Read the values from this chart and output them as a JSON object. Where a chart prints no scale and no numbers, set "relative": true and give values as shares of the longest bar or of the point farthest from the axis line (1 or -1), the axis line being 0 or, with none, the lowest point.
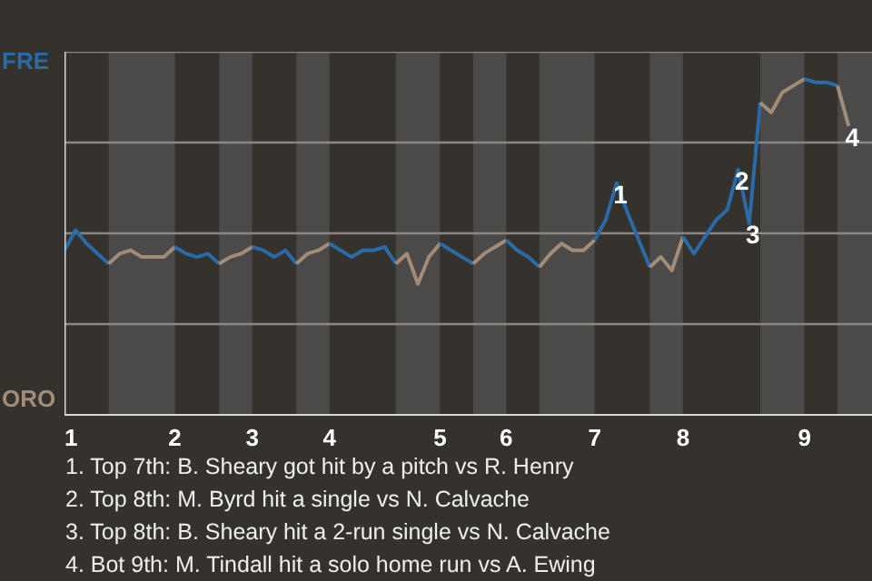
{
  "chart_data": {
    "type": "line",
    "relative": true,
    "categories": [
      "1",
      null,
      null,
      null,
      null,
      null,
      null,
      null,
      null,
      null,
      "2",
      null,
      null,
      null,
      null,
      null,
      null,
      "3",
      null,
      null,
      null,
      null,
      null,
      null,
      "4",
      null,
      null,
      null,
      null,
      null,
      null,
      null,
      null,
      null,
      "5",
      null,
      null,
      null,
      null,
      null,
      "6",
      null,
      null,
      null,
      null,
      null,
      null,
      null,
      "7",
      null,
      null,
      null,
      null,
      null,
      null,
      null,
      "8",
      null,
      null,
      null,
      null,
      null,
      null,
      null,
      null,
      null,
      null,
      "9",
      null,
      null,
      null,
      null
    ],
    "grid": "y",
    "marker": "none",
    "line_style": "solid",
    "series": [
      {
        "name": "FRE",
        "color": "#2a6aa6",
        "values": [
          0.49,
          0.55,
          0.51,
          0.48,
          0.45,
          null,
          null,
          null,
          null,
          null,
          null,
          null,
          null,
          null,
          null,
          null,
          null,
          null,
          null,
          null,
          null,
          null,
          null,
          null,
          null,
          null,
          null,
          null,
          null,
          null,
          null,
          null,
          null,
          null,
          null,
          null,
          null,
          null,
          null,
          null,
          null,
          null,
          null,
          null,
          null,
          null,
          null,
          null,
          null,
          null,
          null,
          null,
          null,
          null,
          null,
          null,
          null,
          null,
          null,
          null,
          null,
          null,
          null,
          null,
          null,
          null,
          null,
          null,
          null,
          null,
          null,
          null
        ]
      },
      {
        "name": "ORO",
        "color": "#a08c78",
        "values": [
          null,
          null,
          null,
          null,
          0.45,
          0.48,
          0.49,
          0.47,
          0.47,
          0.47,
          0.5,
          null,
          null,
          null,
          null,
          null,
          null,
          null,
          null,
          null,
          null,
          null,
          null,
          null,
          null,
          null,
          null,
          null,
          null,
          null,
          null,
          null,
          null,
          null,
          null,
          null,
          null,
          null,
          null,
          null,
          null,
          null,
          null,
          null,
          null,
          null,
          null,
          null,
          null,
          null,
          null,
          null,
          null,
          null,
          null,
          null,
          null,
          null,
          null,
          null,
          null,
          null,
          null,
          null,
          null,
          null,
          null,
          null,
          null,
          null,
          null,
          null
        ]
      },
      {
        "color": "#2a6aa6",
        "values": [
          null,
          null,
          null,
          null,
          null,
          null,
          null,
          null,
          null,
          null,
          0.5,
          0.48,
          0.47,
          0.48,
          0.45,
          null,
          null,
          null,
          null,
          null,
          null,
          null,
          null,
          null,
          null,
          null,
          null,
          null,
          null,
          null,
          null,
          null,
          null,
          null,
          null,
          null,
          null,
          null,
          null,
          null,
          null,
          null,
          null,
          null,
          null,
          null,
          null,
          null,
          null,
          null,
          null,
          null,
          null,
          null,
          null,
          null,
          null,
          null,
          null,
          null,
          null,
          null,
          null,
          null,
          null,
          null,
          null,
          null,
          null,
          null,
          null,
          null
        ]
      },
      {
        "color": "#a08c78",
        "values": [
          null,
          null,
          null,
          null,
          null,
          null,
          null,
          null,
          null,
          null,
          null,
          null,
          null,
          null,
          0.45,
          0.47,
          0.48,
          0.5,
          null,
          null,
          null,
          null,
          null,
          null,
          null,
          null,
          null,
          null,
          null,
          null,
          null,
          null,
          null,
          null,
          null,
          null,
          null,
          null,
          null,
          null,
          null,
          null,
          null,
          null,
          null,
          null,
          null,
          null,
          null,
          null,
          null,
          null,
          null,
          null,
          null,
          null,
          null,
          null,
          null,
          null,
          null,
          null,
          null,
          null,
          null,
          null,
          null,
          null,
          null,
          null,
          null,
          null
        ]
      },
      {
        "color": "#2a6aa6",
        "values": [
          null,
          null,
          null,
          null,
          null,
          null,
          null,
          null,
          null,
          null,
          null,
          null,
          null,
          null,
          null,
          null,
          null,
          0.5,
          0.49,
          0.47,
          0.49,
          0.45,
          null,
          null,
          null,
          null,
          null,
          null,
          null,
          null,
          null,
          null,
          null,
          null,
          null,
          null,
          null,
          null,
          null,
          null,
          null,
          null,
          null,
          null,
          null,
          null,
          null,
          null,
          null,
          null,
          null,
          null,
          null,
          null,
          null,
          null,
          null,
          null,
          null,
          null,
          null,
          null,
          null,
          null,
          null,
          null,
          null,
          null,
          null,
          null,
          null,
          null
        ]
      },
      {
        "color": "#a08c78",
        "values": [
          null,
          null,
          null,
          null,
          null,
          null,
          null,
          null,
          null,
          null,
          null,
          null,
          null,
          null,
          null,
          null,
          null,
          null,
          null,
          null,
          null,
          0.45,
          0.48,
          0.49,
          0.51,
          null,
          null,
          null,
          null,
          null,
          null,
          null,
          null,
          null,
          null,
          null,
          null,
          null,
          null,
          null,
          null,
          null,
          null,
          null,
          null,
          null,
          null,
          null,
          null,
          null,
          null,
          null,
          null,
          null,
          null,
          null,
          null,
          null,
          null,
          null,
          null,
          null,
          null,
          null,
          null,
          null,
          null,
          null,
          null,
          null,
          null,
          null
        ]
      },
      {
        "color": "#2a6aa6",
        "values": [
          null,
          null,
          null,
          null,
          null,
          null,
          null,
          null,
          null,
          null,
          null,
          null,
          null,
          null,
          null,
          null,
          null,
          null,
          null,
          null,
          null,
          null,
          null,
          null,
          0.51,
          0.49,
          0.47,
          0.49,
          0.49,
          0.5,
          0.45,
          null,
          null,
          null,
          null,
          null,
          null,
          null,
          null,
          null,
          null,
          null,
          null,
          null,
          null,
          null,
          null,
          null,
          null,
          null,
          null,
          null,
          null,
          null,
          null,
          null,
          null,
          null,
          null,
          null,
          null,
          null,
          null,
          null,
          null,
          null,
          null,
          null,
          null,
          null,
          null,
          null
        ]
      },
      {
        "color": "#a08c78",
        "values": [
          null,
          null,
          null,
          null,
          null,
          null,
          null,
          null,
          null,
          null,
          null,
          null,
          null,
          null,
          null,
          null,
          null,
          null,
          null,
          null,
          null,
          null,
          null,
          null,
          null,
          null,
          null,
          null,
          null,
          null,
          0.45,
          0.48,
          0.39,
          0.47,
          0.51,
          null,
          null,
          null,
          null,
          null,
          null,
          null,
          null,
          null,
          null,
          null,
          null,
          null,
          null,
          null,
          null,
          null,
          null,
          null,
          null,
          null,
          null,
          null,
          null,
          null,
          null,
          null,
          null,
          null,
          null,
          null,
          null,
          null,
          null,
          null,
          null,
          null
        ]
      },
      {
        "color": "#2a6aa6",
        "values": [
          null,
          null,
          null,
          null,
          null,
          null,
          null,
          null,
          null,
          null,
          null,
          null,
          null,
          null,
          null,
          null,
          null,
          null,
          null,
          null,
          null,
          null,
          null,
          null,
          null,
          null,
          null,
          null,
          null,
          null,
          null,
          null,
          null,
          null,
          0.51,
          0.49,
          0.47,
          0.45,
          null,
          null,
          null,
          null,
          null,
          null,
          null,
          null,
          null,
          null,
          null,
          null,
          null,
          null,
          null,
          null,
          null,
          null,
          null,
          null,
          null,
          null,
          null,
          null,
          null,
          null,
          null,
          null,
          null,
          null,
          null,
          null,
          null,
          null
        ]
      },
      {
        "color": "#a08c78",
        "values": [
          null,
          null,
          null,
          null,
          null,
          null,
          null,
          null,
          null,
          null,
          null,
          null,
          null,
          null,
          null,
          null,
          null,
          null,
          null,
          null,
          null,
          null,
          null,
          null,
          null,
          null,
          null,
          null,
          null,
          null,
          null,
          null,
          null,
          null,
          null,
          null,
          null,
          0.45,
          0.48,
          0.5,
          0.52,
          null,
          null,
          null,
          null,
          null,
          null,
          null,
          null,
          null,
          null,
          null,
          null,
          null,
          null,
          null,
          null,
          null,
          null,
          null,
          null,
          null,
          null,
          null,
          null,
          null,
          null,
          null,
          null,
          null,
          null,
          null
        ]
      },
      {
        "color": "#2a6aa6",
        "values": [
          null,
          null,
          null,
          null,
          null,
          null,
          null,
          null,
          null,
          null,
          null,
          null,
          null,
          null,
          null,
          null,
          null,
          null,
          null,
          null,
          null,
          null,
          null,
          null,
          null,
          null,
          null,
          null,
          null,
          null,
          null,
          null,
          null,
          null,
          null,
          null,
          null,
          null,
          null,
          null,
          0.52,
          0.49,
          0.47,
          0.44,
          null,
          null,
          null,
          null,
          null,
          null,
          null,
          null,
          null,
          null,
          null,
          null,
          null,
          null,
          null,
          null,
          null,
          null,
          null,
          null,
          null,
          null,
          null,
          null,
          null,
          null,
          null,
          null
        ]
      },
      {
        "color": "#a08c78",
        "values": [
          null,
          null,
          null,
          null,
          null,
          null,
          null,
          null,
          null,
          null,
          null,
          null,
          null,
          null,
          null,
          null,
          null,
          null,
          null,
          null,
          null,
          null,
          null,
          null,
          null,
          null,
          null,
          null,
          null,
          null,
          null,
          null,
          null,
          null,
          null,
          null,
          null,
          null,
          null,
          null,
          null,
          null,
          null,
          0.44,
          0.48,
          0.51,
          0.49,
          0.49,
          0.52,
          null,
          null,
          null,
          null,
          null,
          null,
          null,
          null,
          null,
          null,
          null,
          null,
          null,
          null,
          null,
          null,
          null,
          null,
          null,
          null,
          null,
          null,
          null
        ]
      },
      {
        "color": "#2a6aa6",
        "values": [
          null,
          null,
          null,
          null,
          null,
          null,
          null,
          null,
          null,
          null,
          null,
          null,
          null,
          null,
          null,
          null,
          null,
          null,
          null,
          null,
          null,
          null,
          null,
          null,
          null,
          null,
          null,
          null,
          null,
          null,
          null,
          null,
          null,
          null,
          null,
          null,
          null,
          null,
          null,
          null,
          null,
          null,
          null,
          null,
          null,
          null,
          null,
          null,
          0.52,
          0.58,
          0.69,
          0.6,
          0.52,
          0.44,
          null,
          null,
          null,
          null,
          null,
          null,
          null,
          null,
          null,
          null,
          null,
          null,
          null,
          null,
          null,
          null,
          null,
          null
        ]
      },
      {
        "color": "#a08c78",
        "values": [
          null,
          null,
          null,
          null,
          null,
          null,
          null,
          null,
          null,
          null,
          null,
          null,
          null,
          null,
          null,
          null,
          null,
          null,
          null,
          null,
          null,
          null,
          null,
          null,
          null,
          null,
          null,
          null,
          null,
          null,
          null,
          null,
          null,
          null,
          null,
          null,
          null,
          null,
          null,
          null,
          null,
          null,
          null,
          null,
          null,
          null,
          null,
          null,
          null,
          null,
          null,
          null,
          null,
          0.44,
          0.47,
          0.43,
          0.53,
          null,
          null,
          null,
          null,
          null,
          null,
          null,
          null,
          null,
          null,
          null,
          null,
          null,
          null,
          null
        ]
      },
      {
        "color": "#2a6aa6",
        "values": [
          null,
          null,
          null,
          null,
          null,
          null,
          null,
          null,
          null,
          null,
          null,
          null,
          null,
          null,
          null,
          null,
          null,
          null,
          null,
          null,
          null,
          null,
          null,
          null,
          null,
          null,
          null,
          null,
          null,
          null,
          null,
          null,
          null,
          null,
          null,
          null,
          null,
          null,
          null,
          null,
          null,
          null,
          null,
          null,
          null,
          null,
          null,
          null,
          null,
          null,
          null,
          null,
          null,
          null,
          null,
          null,
          0.53,
          0.48,
          0.53,
          0.58,
          0.61,
          0.73,
          0.57,
          0.93,
          null,
          null,
          null,
          null,
          null,
          null,
          null,
          null
        ]
      },
      {
        "color": "#a08c78",
        "values": [
          null,
          null,
          null,
          null,
          null,
          null,
          null,
          null,
          null,
          null,
          null,
          null,
          null,
          null,
          null,
          null,
          null,
          null,
          null,
          null,
          null,
          null,
          null,
          null,
          null,
          null,
          null,
          null,
          null,
          null,
          null,
          null,
          null,
          null,
          null,
          null,
          null,
          null,
          null,
          null,
          null,
          null,
          null,
          null,
          null,
          null,
          null,
          null,
          null,
          null,
          null,
          null,
          null,
          null,
          null,
          null,
          null,
          null,
          null,
          null,
          null,
          null,
          null,
          0.93,
          0.9,
          0.96,
          0.98,
          1.0,
          null,
          null,
          null,
          null
        ]
      },
      {
        "color": "#2a6aa6",
        "values": [
          null,
          null,
          null,
          null,
          null,
          null,
          null,
          null,
          null,
          null,
          null,
          null,
          null,
          null,
          null,
          null,
          null,
          null,
          null,
          null,
          null,
          null,
          null,
          null,
          null,
          null,
          null,
          null,
          null,
          null,
          null,
          null,
          null,
          null,
          null,
          null,
          null,
          null,
          null,
          null,
          null,
          null,
          null,
          null,
          null,
          null,
          null,
          null,
          null,
          null,
          null,
          null,
          null,
          null,
          null,
          null,
          null,
          null,
          null,
          null,
          null,
          null,
          null,
          null,
          null,
          null,
          null,
          1.0,
          0.99,
          0.99,
          0.98,
          null
        ]
      },
      {
        "color": "#a08c78",
        "values": [
          null,
          null,
          null,
          null,
          null,
          null,
          null,
          null,
          null,
          null,
          null,
          null,
          null,
          null,
          null,
          null,
          null,
          null,
          null,
          null,
          null,
          null,
          null,
          null,
          null,
          null,
          null,
          null,
          null,
          null,
          null,
          null,
          null,
          null,
          null,
          null,
          null,
          null,
          null,
          null,
          null,
          null,
          null,
          null,
          null,
          null,
          null,
          null,
          null,
          null,
          null,
          null,
          null,
          null,
          null,
          null,
          null,
          null,
          null,
          null,
          null,
          null,
          null,
          null,
          null,
          null,
          null,
          null,
          null,
          null,
          0.98,
          0.86
        ]
      }
    ],
    "annotations": [
      {
        "text": "1",
        "y": 0.69
      },
      {
        "text": "2",
        "y": 0.73
      },
      {
        "text": "3",
        "y": 0.57
      },
      {
        "text": "4",
        "y": 0.86
      },
      "1. Top 7th: B. Sheary got hit by a pitch vs R. Henry",
      "2. Top 8th: M. Byrd hit a single vs N. Calvache",
      "3. Top 8th: B. Sheary hit a 2-run single vs N. Calvache",
      "4. Bot 9th: M. Tindall hit a solo home run vs A. Ewing"
    ]
  }
}
